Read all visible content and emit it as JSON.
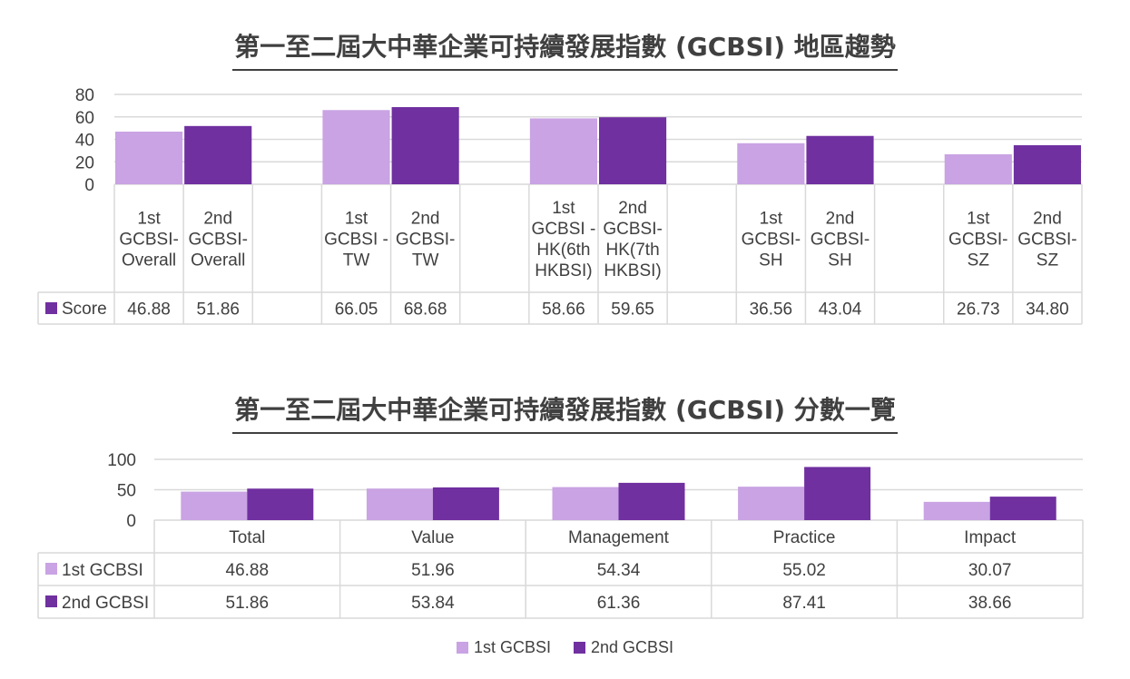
{
  "colors": {
    "series1": "#c9a3e3",
    "series2": "#7030a0",
    "grid": "#d9d9d9",
    "text": "#404040"
  },
  "chart_data": [
    {
      "type": "bar",
      "title": "第一至二屆大中華企業可持續發展指數 (GCBSI) 地區趨勢",
      "ylim": [
        0,
        80
      ],
      "yticks": [
        0,
        20,
        40,
        60,
        80
      ],
      "grid": true,
      "groups": [
        {
          "bars": [
            {
              "label_lines": [
                "1st",
                "GCBSI-",
                "Overall"
              ],
              "value": 46.88,
              "value_label": "46.88",
              "series": 1
            },
            {
              "label_lines": [
                "2nd",
                "GCBSI-",
                "Overall"
              ],
              "value": 51.86,
              "value_label": "51.86",
              "series": 2
            }
          ]
        },
        {
          "bars": [
            {
              "label_lines": [
                "1st",
                "GCBSI -",
                "TW"
              ],
              "value": 66.05,
              "value_label": "66.05",
              "series": 1
            },
            {
              "label_lines": [
                "2nd",
                "GCBSI-",
                "TW"
              ],
              "value": 68.68,
              "value_label": "68.68",
              "series": 2
            }
          ]
        },
        {
          "bars": [
            {
              "label_lines": [
                "1st",
                "GCBSI -",
                "HK(6th",
                "HKBSI)"
              ],
              "value": 58.66,
              "value_label": "58.66",
              "series": 1
            },
            {
              "label_lines": [
                "2nd",
                "GCBSI-",
                "HK(7th",
                "HKBSI)"
              ],
              "value": 59.65,
              "value_label": "59.65",
              "series": 2
            }
          ]
        },
        {
          "bars": [
            {
              "label_lines": [
                "1st",
                "GCBSI-",
                "SH"
              ],
              "value": 36.56,
              "value_label": "36.56",
              "series": 1
            },
            {
              "label_lines": [
                "2nd",
                "GCBSI-",
                "SH"
              ],
              "value": 43.04,
              "value_label": "43.04",
              "series": 2
            }
          ]
        },
        {
          "bars": [
            {
              "label_lines": [
                "1st",
                "GCBSI-",
                "SZ"
              ],
              "value": 26.73,
              "value_label": "26.73",
              "series": 1
            },
            {
              "label_lines": [
                "2nd",
                "GCBSI-",
                "SZ"
              ],
              "value": 34.8,
              "value_label": "34.80",
              "series": 2
            }
          ]
        }
      ],
      "table_series_label": "Score"
    },
    {
      "type": "bar",
      "title": "第一至二屆大中華企業可持續發展指數 (GCBSI) 分數一覽",
      "ylim": [
        0,
        100
      ],
      "yticks": [
        0,
        50,
        100
      ],
      "grid": true,
      "categories": [
        "Total",
        "Value",
        "Management",
        "Practice",
        "Impact"
      ],
      "series": [
        {
          "name": "1st GCBSI",
          "values": [
            46.88,
            51.96,
            54.34,
            55.02,
            30.07
          ],
          "value_labels": [
            "46.88",
            "51.96",
            "54.34",
            "55.02",
            "30.07"
          ]
        },
        {
          "name": "2nd GCBSI",
          "values": [
            51.86,
            53.84,
            61.36,
            87.41,
            38.66
          ],
          "value_labels": [
            "51.86",
            "53.84",
            "61.36",
            "87.41",
            "38.66"
          ]
        }
      ],
      "legend": "bottom"
    }
  ]
}
